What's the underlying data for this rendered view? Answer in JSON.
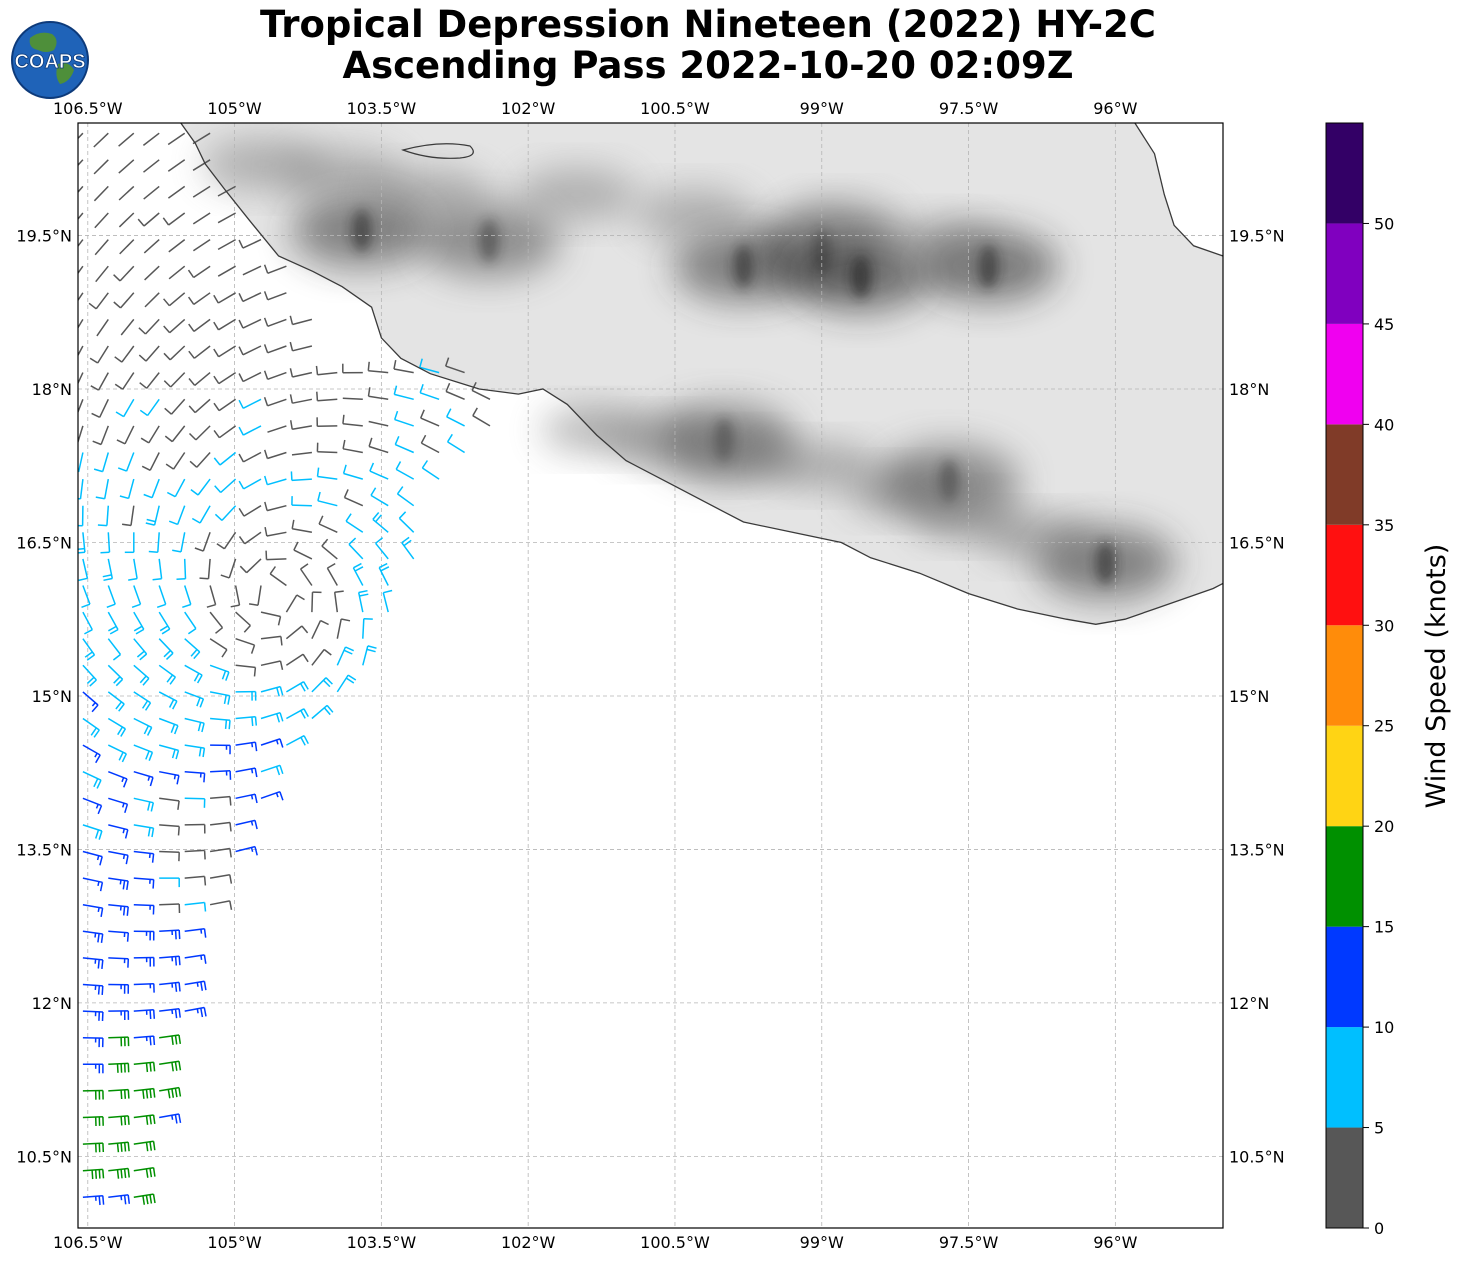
{
  "title": {
    "line1": "Tropical Depression Nineteen (2022) HY-2C",
    "line2": "Ascending Pass 2022-10-20 02:09Z"
  },
  "logo": {
    "text": "COAPS",
    "icon": "globe-icon"
  },
  "map": {
    "projection": "PlateCarree",
    "lon_range": [
      -106.6,
      -94.9
    ],
    "lat_range": [
      9.8,
      20.6
    ],
    "lon_ticks": [
      {
        "value": -106.5,
        "label": "106.5°W"
      },
      {
        "value": -105.0,
        "label": "105°W"
      },
      {
        "value": -103.5,
        "label": "103.5°W"
      },
      {
        "value": -102.0,
        "label": "102°W"
      },
      {
        "value": -100.5,
        "label": "100.5°W"
      },
      {
        "value": -99.0,
        "label": "99°W"
      },
      {
        "value": -97.5,
        "label": "97.5°W"
      },
      {
        "value": -96.0,
        "label": "96°W"
      }
    ],
    "lat_ticks": [
      {
        "value": 19.5,
        "label": "19.5°N"
      },
      {
        "value": 18.0,
        "label": "18°N"
      },
      {
        "value": 16.5,
        "label": "16.5°N"
      },
      {
        "value": 15.0,
        "label": "15°N"
      },
      {
        "value": 13.5,
        "label": "13.5°N"
      },
      {
        "value": 12.0,
        "label": "12°N"
      },
      {
        "value": 10.5,
        "label": "10.5°N"
      }
    ],
    "coastline": [
      [
        -105.55,
        20.6
      ],
      [
        -105.4,
        20.4
      ],
      [
        -105.3,
        20.2
      ],
      [
        -105.1,
        19.95
      ],
      [
        -104.85,
        19.65
      ],
      [
        -104.55,
        19.3
      ],
      [
        -104.2,
        19.15
      ],
      [
        -103.9,
        19.0
      ],
      [
        -103.6,
        18.8
      ],
      [
        -103.5,
        18.5
      ],
      [
        -103.3,
        18.3
      ],
      [
        -103.0,
        18.15
      ],
      [
        -102.5,
        18.0
      ],
      [
        -102.1,
        17.95
      ],
      [
        -101.85,
        18.0
      ],
      [
        -101.6,
        17.85
      ],
      [
        -101.3,
        17.55
      ],
      [
        -101.0,
        17.3
      ],
      [
        -100.5,
        17.05
      ],
      [
        -100.0,
        16.8
      ],
      [
        -99.8,
        16.7
      ],
      [
        -99.3,
        16.6
      ],
      [
        -98.8,
        16.5
      ],
      [
        -98.5,
        16.35
      ],
      [
        -98.0,
        16.2
      ],
      [
        -97.5,
        16.0
      ],
      [
        -97.0,
        15.85
      ],
      [
        -96.5,
        15.75
      ],
      [
        -96.2,
        15.7
      ],
      [
        -95.9,
        15.75
      ],
      [
        -95.6,
        15.85
      ],
      [
        -95.3,
        15.95
      ],
      [
        -95.0,
        16.05
      ],
      [
        -94.9,
        16.1
      ]
    ],
    "coastline_east": [
      [
        -95.8,
        20.6
      ],
      [
        -95.6,
        20.3
      ],
      [
        -95.5,
        19.9
      ],
      [
        -95.4,
        19.6
      ],
      [
        -95.2,
        19.4
      ],
      [
        -94.9,
        19.3
      ]
    ],
    "terrain_ridges": [
      {
        "lon": -103.7,
        "lat": 19.55,
        "intensity": 0.9
      },
      {
        "lon": -102.4,
        "lat": 19.45,
        "intensity": 0.7
      },
      {
        "lon": -99.8,
        "lat": 19.2,
        "intensity": 0.9
      },
      {
        "lon": -99.0,
        "lat": 19.35,
        "intensity": 0.8
      },
      {
        "lon": -98.6,
        "lat": 19.1,
        "intensity": 1.0
      },
      {
        "lon": -97.3,
        "lat": 19.2,
        "intensity": 1.0
      },
      {
        "lon": -96.1,
        "lat": 16.3,
        "intensity": 0.9
      },
      {
        "lon": -100.0,
        "lat": 17.5,
        "intensity": 0.7
      },
      {
        "lon": -97.7,
        "lat": 17.1,
        "intensity": 0.7
      }
    ],
    "wind_swath_edges": {
      "east_edge": [
        [
          -102.3,
          17.75
        ],
        [
          -103.0,
          16.8
        ],
        [
          -103.5,
          15.4
        ],
        [
          -104.5,
          14.4
        ],
        [
          -105.2,
          13.0
        ],
        [
          -105.6,
          11.5
        ],
        [
          -106.0,
          10.0
        ]
      ]
    },
    "wind_speeds_note": "Swath of wind barbs over the ocean west of Mexico"
  },
  "colorbar": {
    "label": "Wind Speed (knots)",
    "bins": [
      {
        "min": 0,
        "max": 5,
        "color": "#575757"
      },
      {
        "min": 5,
        "max": 10,
        "color": "#00bfff"
      },
      {
        "min": 10,
        "max": 15,
        "color": "#0039ff"
      },
      {
        "min": 15,
        "max": 20,
        "color": "#009000"
      },
      {
        "min": 20,
        "max": 25,
        "color": "#ffd414"
      },
      {
        "min": 25,
        "max": 30,
        "color": "#ff8c0a"
      },
      {
        "min": 30,
        "max": 35,
        "color": "#ff1010"
      },
      {
        "min": 35,
        "max": 40,
        "color": "#803b28"
      },
      {
        "min": 40,
        "max": 45,
        "color": "#f000f0"
      },
      {
        "min": 45,
        "max": 50,
        "color": "#8000bf"
      },
      {
        "min": 50,
        "max": 55,
        "color": "#330066"
      }
    ],
    "ticks": [
      "0",
      "5",
      "10",
      "15",
      "20",
      "25",
      "30",
      "35",
      "40",
      "45",
      "50"
    ]
  }
}
